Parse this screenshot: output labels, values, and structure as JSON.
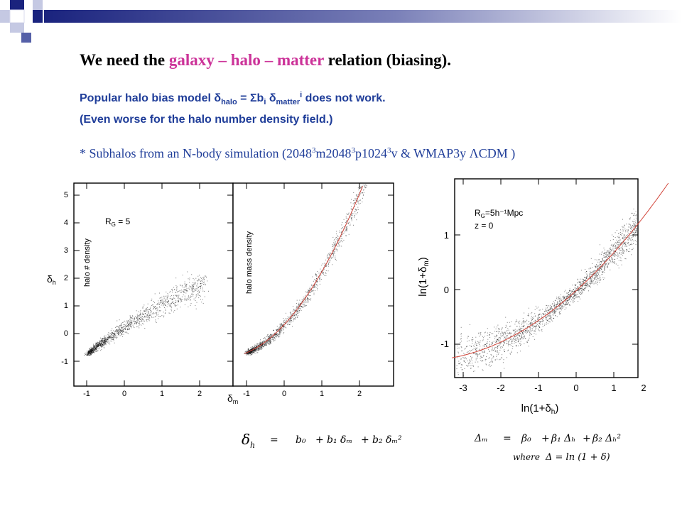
{
  "title": {
    "pre": "We need the ",
    "w1": "galaxy",
    "d1": " – ",
    "w2": "halo",
    "d2": " – ",
    "w3": "matter",
    "post": " relation (biasing)."
  },
  "bias_model": {
    "a": "Popular halo bias model   δ",
    "a_sub": "halo",
    "b": " = Σb",
    "b_sub": "i",
    "c": " δ",
    "c_sub": "matter",
    "c_sup": "i",
    "d": "   does not work."
  },
  "worse_note": "(Even worse for the halo number density field.)",
  "subhalo_line": {
    "a": "* Subhalos from an N-body simulation (2048",
    "s1": "3",
    "b": "m2048",
    "s2": "3",
    "c": "p1024",
    "s3": "3",
    "d": "v & WMAP3y ΛCDM )"
  },
  "figure_left": {
    "panel1_label": "halo # density",
    "panel2_label": "halo  mass density",
    "rc_text": "R",
    "rc_sub": "G",
    "rc_val": " = 5",
    "ylabel": "δ",
    "ylabel_sub": "h",
    "xlabel": "δ",
    "xlabel_sub": "m",
    "yticks": [
      "-1",
      "0",
      "1",
      "2",
      "3",
      "4",
      "5"
    ],
    "xticks": [
      "-1",
      "0",
      "1",
      "2"
    ]
  },
  "figure_right": {
    "rc_line": "R",
    "rc_sub": "G",
    "rc_val": "=5h⁻¹Mpc",
    "z_line": "z = 0",
    "ylabel": "ln(1+δ",
    "ylabel_sub": "m",
    "ylabel_end": ")",
    "xlabel": "ln(1+δ",
    "xlabel_sub": "h",
    "xlabel_end": ")",
    "yticks": [
      "-1",
      "0",
      "1"
    ],
    "xticks": [
      "-3",
      "-2",
      "-1",
      "0",
      "1",
      "2"
    ]
  },
  "eq_left": {
    "lhs": "δ",
    "lhs_sub": "h",
    "eq": "=",
    "t0": "b₀",
    "p1": "+",
    "t1": "b₁ δₘ",
    "p2": "+",
    "t2": "b₂ δₘ²"
  },
  "eq_right": {
    "lhs": "Δₘ",
    "eq": "=",
    "t0": "β₀",
    "p1": "+",
    "t1": "β₁ Δₕ",
    "p2": "+",
    "t2": "β₂ Δₕ²",
    "where": "where",
    "def": "Δ  =  ln (1 + δ)"
  },
  "colors": {
    "blue_dark": "#1a237e",
    "blue_mid": "#5560a8",
    "blue_light": "#c5c9e3",
    "title_pink": "#cc3399",
    "text_blue": "#1f3d99",
    "fit_red": "#d2453a"
  }
}
